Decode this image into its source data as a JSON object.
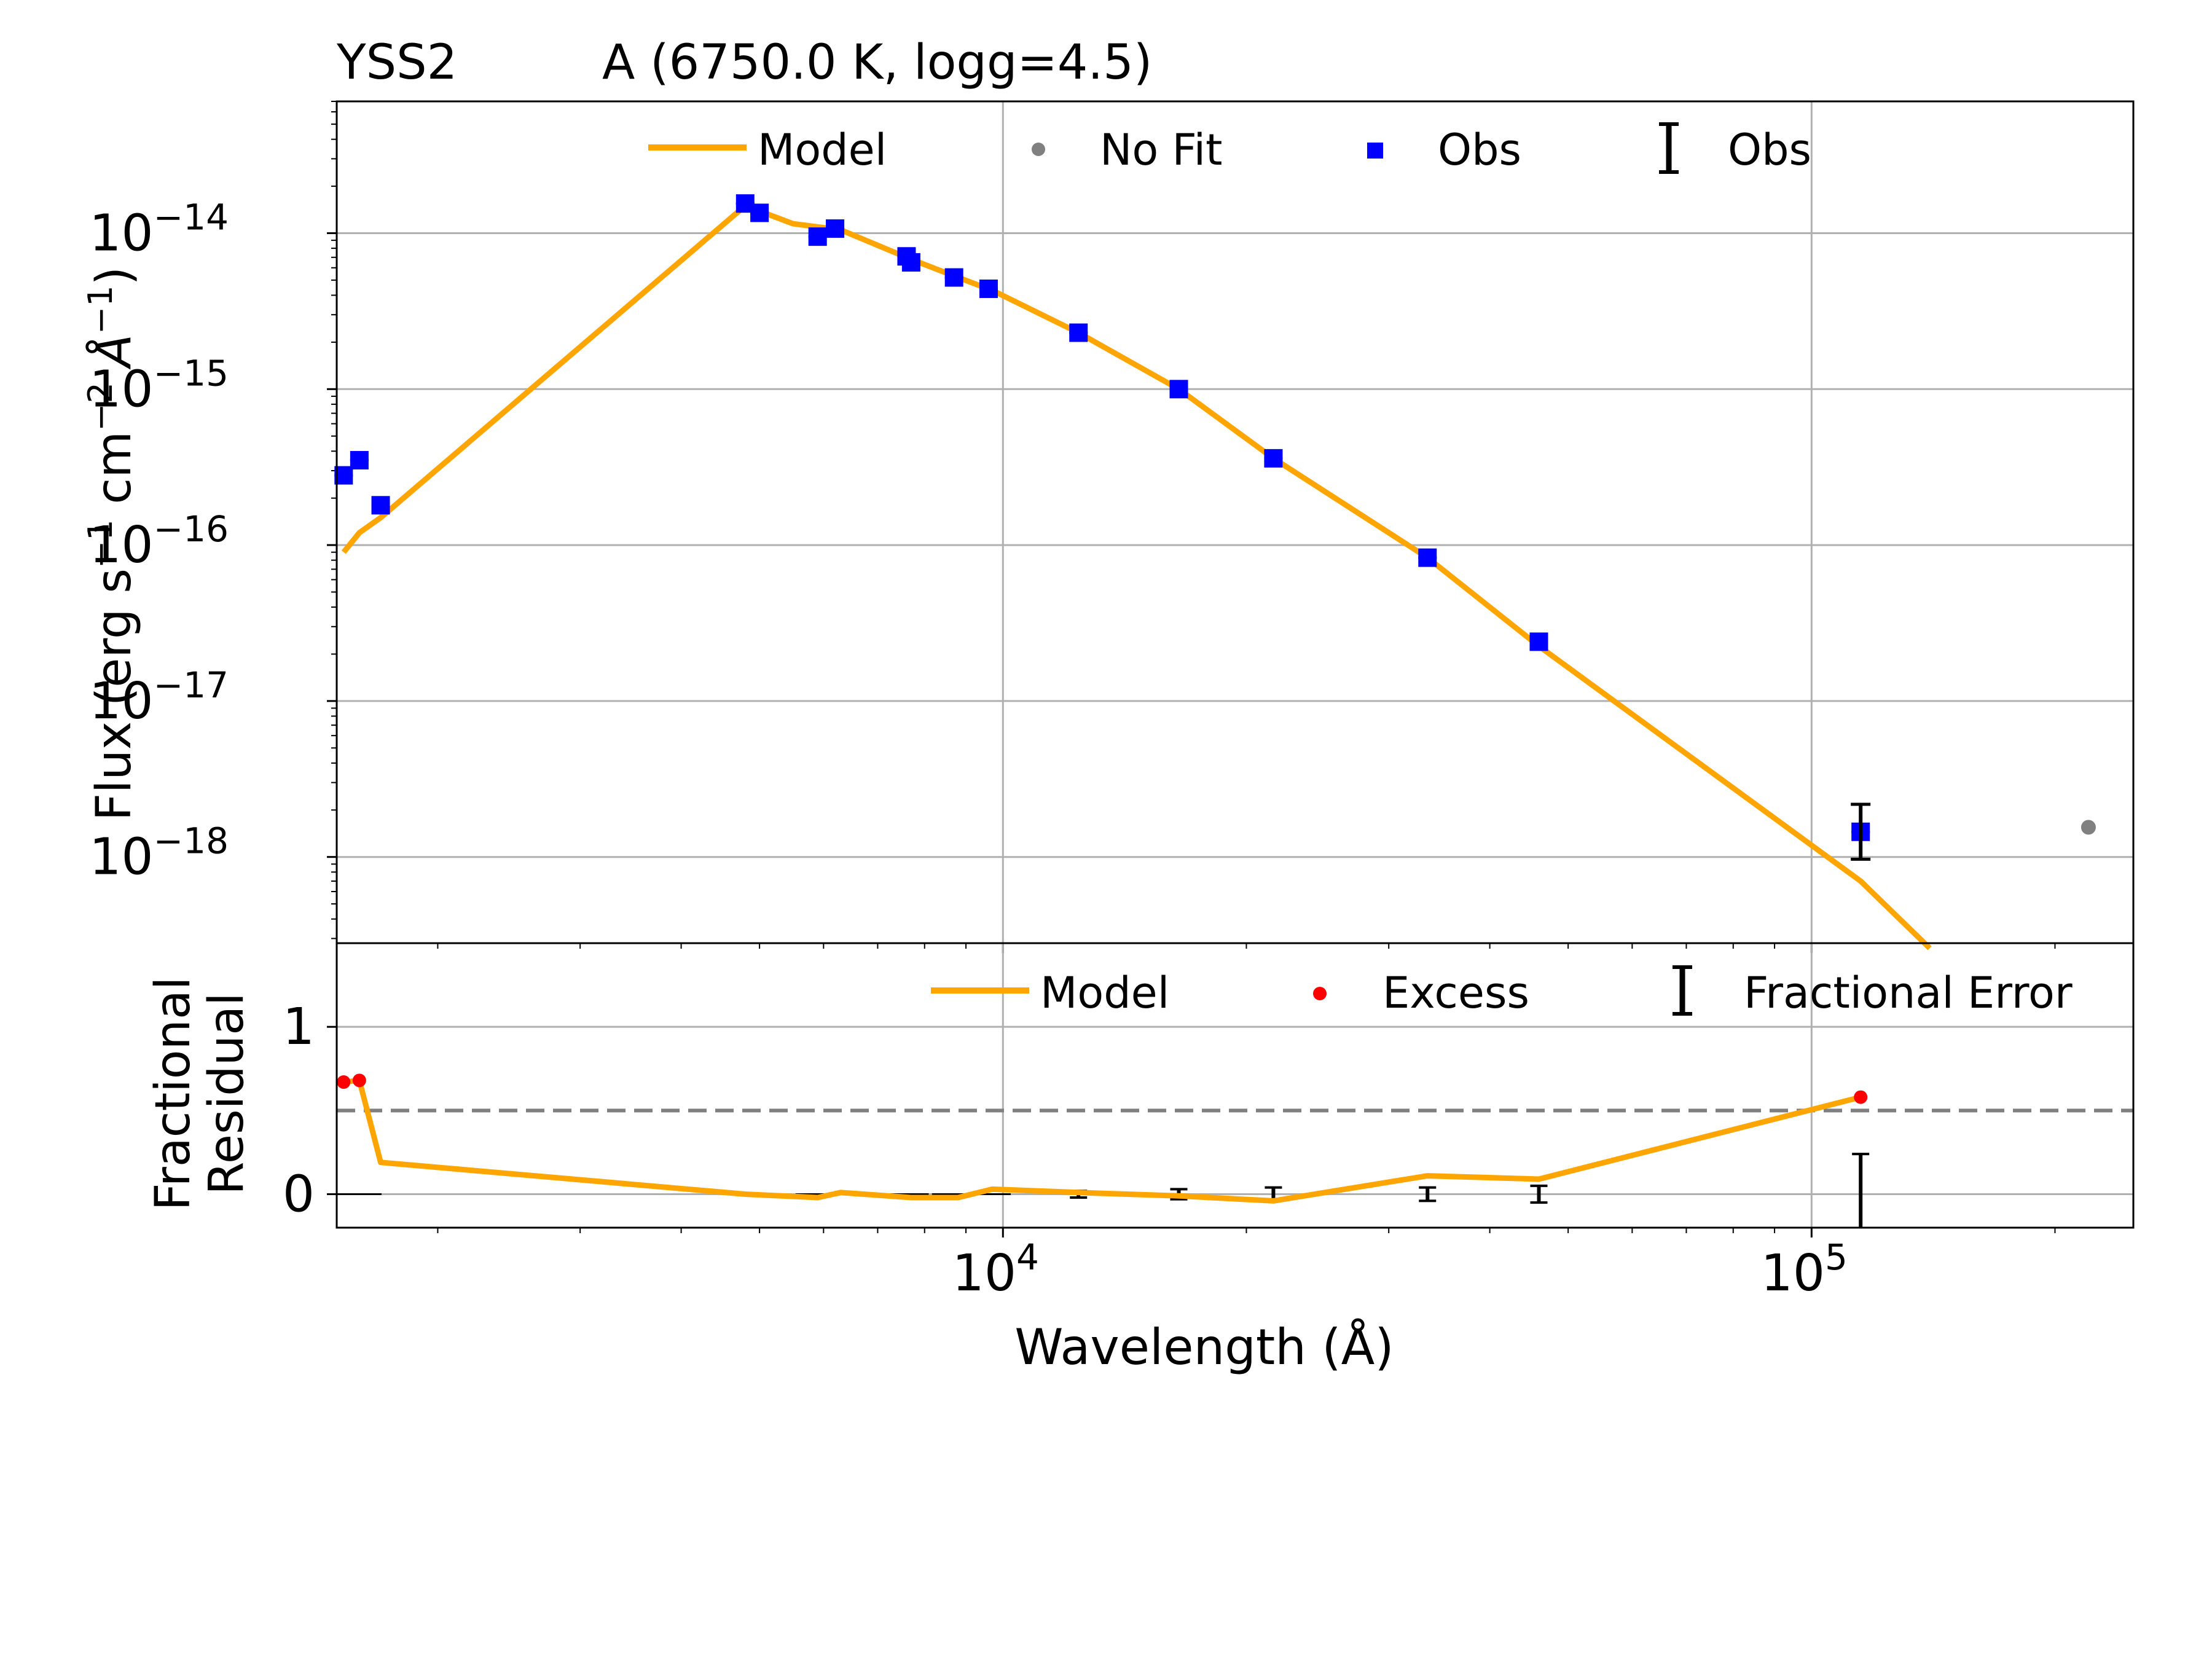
{
  "chart_data": [
    {
      "type": "line",
      "panel": "sed",
      "title_left": "YSS2",
      "title_right": "A (6750.0 K, logg=4.5)",
      "ylabel_parts": [
        "Flux (erg s",
        "−1",
        " cm",
        "−2",
        " Å",
        "−1",
        ")"
      ],
      "x_scale": "log",
      "y_scale": "log",
      "xlim": [
        1500,
        250000
      ],
      "ylim": [
        2.8e-19,
        7e-14
      ],
      "y_ticks": [
        {
          "base": "10",
          "exp": "−14",
          "value": 1e-14
        },
        {
          "base": "10",
          "exp": "−15",
          "value": 1e-15
        },
        {
          "base": "10",
          "exp": "−16",
          "value": 1e-16
        },
        {
          "base": "10",
          "exp": "−17",
          "value": 1e-17
        },
        {
          "base": "10",
          "exp": "−18",
          "value": 1e-18
        }
      ],
      "legend": {
        "position": "top-center",
        "entries": [
          {
            "label": "Model",
            "marker": "line"
          },
          {
            "label": "No Fit",
            "marker": "grey-dot"
          },
          {
            "label": "Obs",
            "marker": "blue-square"
          },
          {
            "label": "Obs",
            "marker": "errorbar"
          }
        ]
      },
      "series": [
        {
          "name": "Model",
          "color": "#ffa500",
          "x": [
            1530,
            1600,
            1700,
            4800,
            5500,
            6300,
            7700,
            8800,
            9700,
            12400,
            16500,
            21600,
            33500,
            46000,
            115000,
            140000
          ],
          "y": [
            9e-17,
            1.2e-16,
            1.5e-16,
            1.5e-14,
            1.15e-14,
            1.05e-14,
            6.8e-15,
            5.2e-15,
            4.3e-15,
            2.3e-15,
            1e-15,
            3.6e-16,
            8.3e-17,
            2.25e-17,
            7e-19,
            2.6e-19
          ]
        },
        {
          "name": "Obs",
          "color": "#0000ff",
          "x": [
            1530,
            1600,
            1700,
            4800,
            5000,
            5900,
            6200,
            7600,
            7700,
            8700,
            9600,
            12400,
            16500,
            21600,
            33500,
            46000,
            115000
          ],
          "y": [
            2.8e-16,
            3.5e-16,
            1.8e-16,
            1.55e-14,
            1.35e-14,
            9.5e-15,
            1.07e-14,
            7.1e-15,
            6.5e-15,
            5.2e-15,
            4.4e-15,
            2.3e-15,
            1e-15,
            3.6e-16,
            8.3e-17,
            2.4e-17,
            1.45e-18
          ]
        },
        {
          "name": "No Fit",
          "color": "#808080",
          "x": [
            220000
          ],
          "y": [
            1.55e-18
          ]
        }
      ]
    },
    {
      "type": "line",
      "panel": "residual",
      "ylabel_lines": [
        "Fractional",
        "Residual"
      ],
      "xlabel": "Wavelength (Å)",
      "x_scale": "log",
      "xlim": [
        1500,
        250000
      ],
      "ylim": [
        -0.2,
        1.5
      ],
      "y_ticks": [
        {
          "label": "1",
          "value": 1
        },
        {
          "label": "0",
          "value": 0
        }
      ],
      "x_ticks": [
        {
          "base": "10",
          "exp": "4",
          "value": 10000
        },
        {
          "base": "10",
          "exp": "5",
          "value": 100000
        }
      ],
      "threshold_line": 0.5,
      "legend": {
        "position": "top-right",
        "entries": [
          {
            "label": "Model",
            "marker": "line"
          },
          {
            "label": "Excess",
            "marker": "red-dot"
          },
          {
            "label": "Fractional Error",
            "marker": "errorbar"
          }
        ]
      },
      "series": [
        {
          "name": "Model",
          "color": "#ffa500",
          "x": [
            1530,
            1600,
            1700,
            4800,
            5900,
            6300,
            7700,
            8800,
            9700,
            12400,
            16500,
            21600,
            33500,
            46000,
            115000
          ],
          "y": [
            0.67,
            0.68,
            0.19,
            0.0,
            -0.02,
            0.01,
            -0.02,
            -0.02,
            0.03,
            0.01,
            -0.01,
            -0.04,
            0.11,
            0.09,
            0.58
          ]
        },
        {
          "name": "Excess",
          "color": "#ff0000",
          "x": [
            1530,
            1600,
            115000
          ],
          "y": [
            0.67,
            0.68,
            0.58
          ]
        },
        {
          "name": "Fractional Error",
          "x": [
            1600,
            4800,
            5000,
            5900,
            6200,
            7600,
            8700,
            9600,
            12400,
            16500,
            21600,
            33500,
            46000,
            115000
          ],
          "y": [
            0,
            0,
            0,
            0,
            0,
            0,
            0,
            0,
            0,
            0,
            0,
            0,
            0,
            0
          ],
          "err": [
            0.005,
            0.005,
            0.005,
            0.005,
            0.005,
            0.005,
            0.005,
            0.005,
            0.02,
            0.03,
            0.04,
            0.04,
            0.05,
            0.24
          ]
        }
      ]
    }
  ]
}
